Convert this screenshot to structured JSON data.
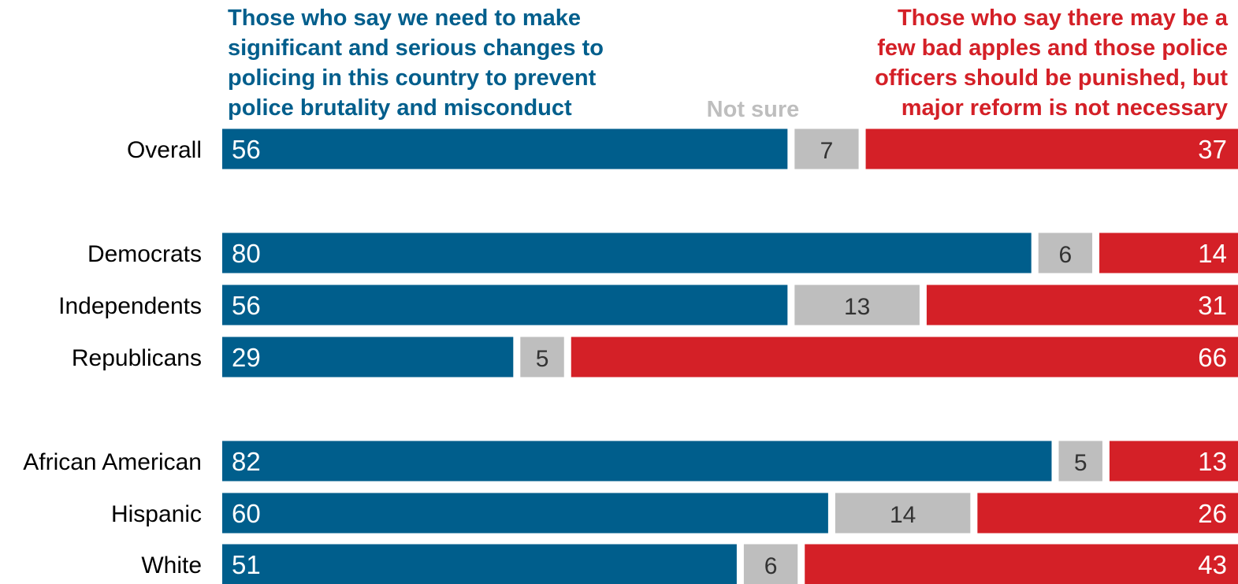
{
  "chart_data": {
    "type": "bar",
    "stacked": true,
    "orientation": "horizontal",
    "title": "",
    "xlabel": "",
    "ylabel": "",
    "xlim": [
      0,
      100
    ],
    "grid": false,
    "legend_position": "top",
    "legend": {
      "left": "Those who say we need to make\nsignificant and serious changes to\npolicing in this country to prevent\npolice brutality and misconduct",
      "middle": "Not sure",
      "right": "Those who say there may be a\nfew bad apples and those police\nofficers should be punished, but\nmajor reform is not necessary"
    },
    "categories": [
      "Overall",
      "Democrats",
      "Independents",
      "Republicans",
      "African American",
      "Hispanic",
      "White"
    ],
    "groups": [
      [
        "Overall"
      ],
      [
        "Democrats",
        "Independents",
        "Republicans"
      ],
      [
        "African American",
        "Hispanic",
        "White"
      ]
    ],
    "series": [
      {
        "values": [
          56,
          80,
          56,
          29,
          82,
          60,
          51
        ],
        "color": "#005E8C"
      },
      {
        "values": [
          7,
          6,
          13,
          5,
          5,
          14,
          6
        ],
        "color": "#BEBEBE"
      },
      {
        "values": [
          37,
          14,
          31,
          66,
          13,
          26,
          43
        ],
        "color": "#D42027"
      }
    ]
  }
}
